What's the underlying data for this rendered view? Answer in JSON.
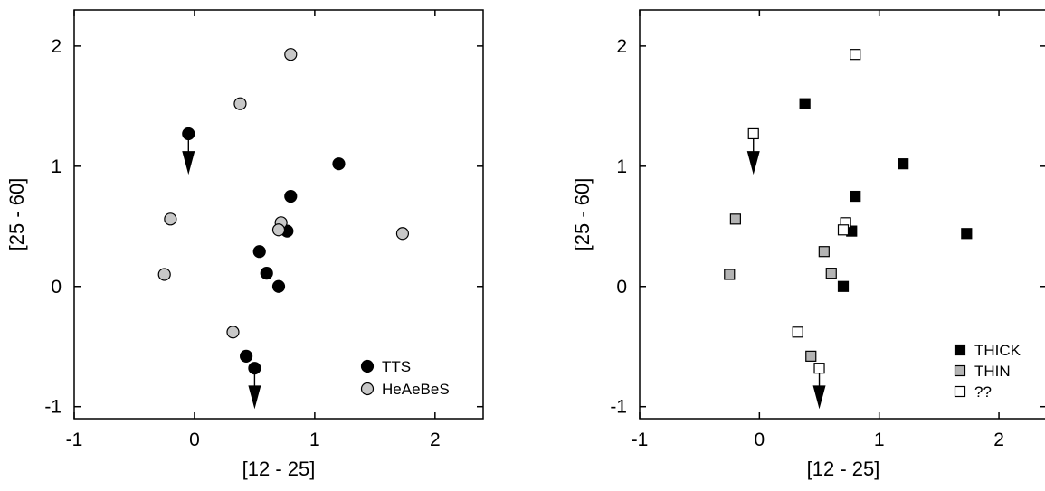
{
  "chart_data": [
    {
      "type": "scatter",
      "xlabel": "[12 - 25]",
      "ylabel": "[25 - 60]",
      "xlim": [
        -1,
        2.4
      ],
      "ylim": [
        -1.1,
        2.3
      ],
      "xticks": [
        -1,
        0,
        1,
        2
      ],
      "yticks": [
        -1,
        0,
        1,
        2
      ],
      "xtick_labels": [
        "-1",
        "0",
        "1",
        "2"
      ],
      "ytick_labels": [
        "-1",
        "0",
        "1",
        "2"
      ],
      "grid": false,
      "legend_position": "bottom-right",
      "series": [
        {
          "name": "TTS",
          "marker": "circle",
          "color": "#000000",
          "points": [
            {
              "x": -0.05,
              "y": 1.27
            },
            {
              "x": 1.2,
              "y": 1.02
            },
            {
              "x": 0.8,
              "y": 0.75
            },
            {
              "x": 0.77,
              "y": 0.46
            },
            {
              "x": 0.54,
              "y": 0.29
            },
            {
              "x": 0.6,
              "y": 0.11
            },
            {
              "x": 0.7,
              "y": 0.0
            },
            {
              "x": 0.43,
              "y": -0.58
            },
            {
              "x": 0.5,
              "y": -0.68
            }
          ]
        },
        {
          "name": "HeAeBeS",
          "marker": "circle",
          "color": "#c8c8c8",
          "points": [
            {
              "x": 0.8,
              "y": 1.93
            },
            {
              "x": 0.38,
              "y": 1.52
            },
            {
              "x": -0.2,
              "y": 0.56
            },
            {
              "x": 0.72,
              "y": 0.53
            },
            {
              "x": 0.7,
              "y": 0.47
            },
            {
              "x": 1.73,
              "y": 0.44
            },
            {
              "x": -0.25,
              "y": 0.1
            },
            {
              "x": 0.32,
              "y": -0.38
            }
          ]
        }
      ],
      "arrows": [
        {
          "from": {
            "x": -0.05,
            "y": 1.27
          },
          "to": {
            "x": -0.05,
            "y": 0.93
          },
          "marks_series": "TTS"
        },
        {
          "from": {
            "x": 0.5,
            "y": -0.68
          },
          "to": {
            "x": 0.5,
            "y": -1.02
          },
          "marks_series": "TTS"
        }
      ]
    },
    {
      "type": "scatter",
      "xlabel": "[12 - 25]",
      "ylabel": "[25 - 60]",
      "xlim": [
        -1,
        2.4
      ],
      "ylim": [
        -1.1,
        2.3
      ],
      "xticks": [
        -1,
        0,
        1,
        2
      ],
      "yticks": [
        -1,
        0,
        1,
        2
      ],
      "xtick_labels": [
        "-1",
        "0",
        "1",
        "2"
      ],
      "ytick_labels": [
        "-1",
        "0",
        "1",
        "2"
      ],
      "grid": false,
      "legend_position": "bottom-right",
      "series": [
        {
          "name": "THICK",
          "marker": "square",
          "color": "#000000",
          "points": [
            {
              "x": 0.38,
              "y": 1.52
            },
            {
              "x": 1.2,
              "y": 1.02
            },
            {
              "x": 0.8,
              "y": 0.75
            },
            {
              "x": 0.77,
              "y": 0.46
            },
            {
              "x": 1.73,
              "y": 0.44
            },
            {
              "x": 0.7,
              "y": 0.0
            }
          ]
        },
        {
          "name": "THIN",
          "marker": "square",
          "color": "#b4b4b4",
          "points": [
            {
              "x": -0.2,
              "y": 0.56
            },
            {
              "x": 0.54,
              "y": 0.29
            },
            {
              "x": 0.6,
              "y": 0.11
            },
            {
              "x": -0.25,
              "y": 0.1
            },
            {
              "x": 0.43,
              "y": -0.58
            }
          ]
        },
        {
          "name": "??",
          "marker": "square",
          "color": "#ffffff",
          "points": [
            {
              "x": 0.8,
              "y": 1.93
            },
            {
              "x": -0.05,
              "y": 1.27
            },
            {
              "x": 0.72,
              "y": 0.53
            },
            {
              "x": 0.7,
              "y": 0.47
            },
            {
              "x": 0.32,
              "y": -0.38
            },
            {
              "x": 0.5,
              "y": -0.68
            }
          ]
        }
      ],
      "arrows": [
        {
          "from": {
            "x": -0.05,
            "y": 1.27
          },
          "to": {
            "x": -0.05,
            "y": 0.93
          },
          "marks_series": "??"
        },
        {
          "from": {
            "x": 0.5,
            "y": -0.68
          },
          "to": {
            "x": 0.5,
            "y": -1.02
          },
          "marks_series": "??"
        }
      ]
    }
  ]
}
